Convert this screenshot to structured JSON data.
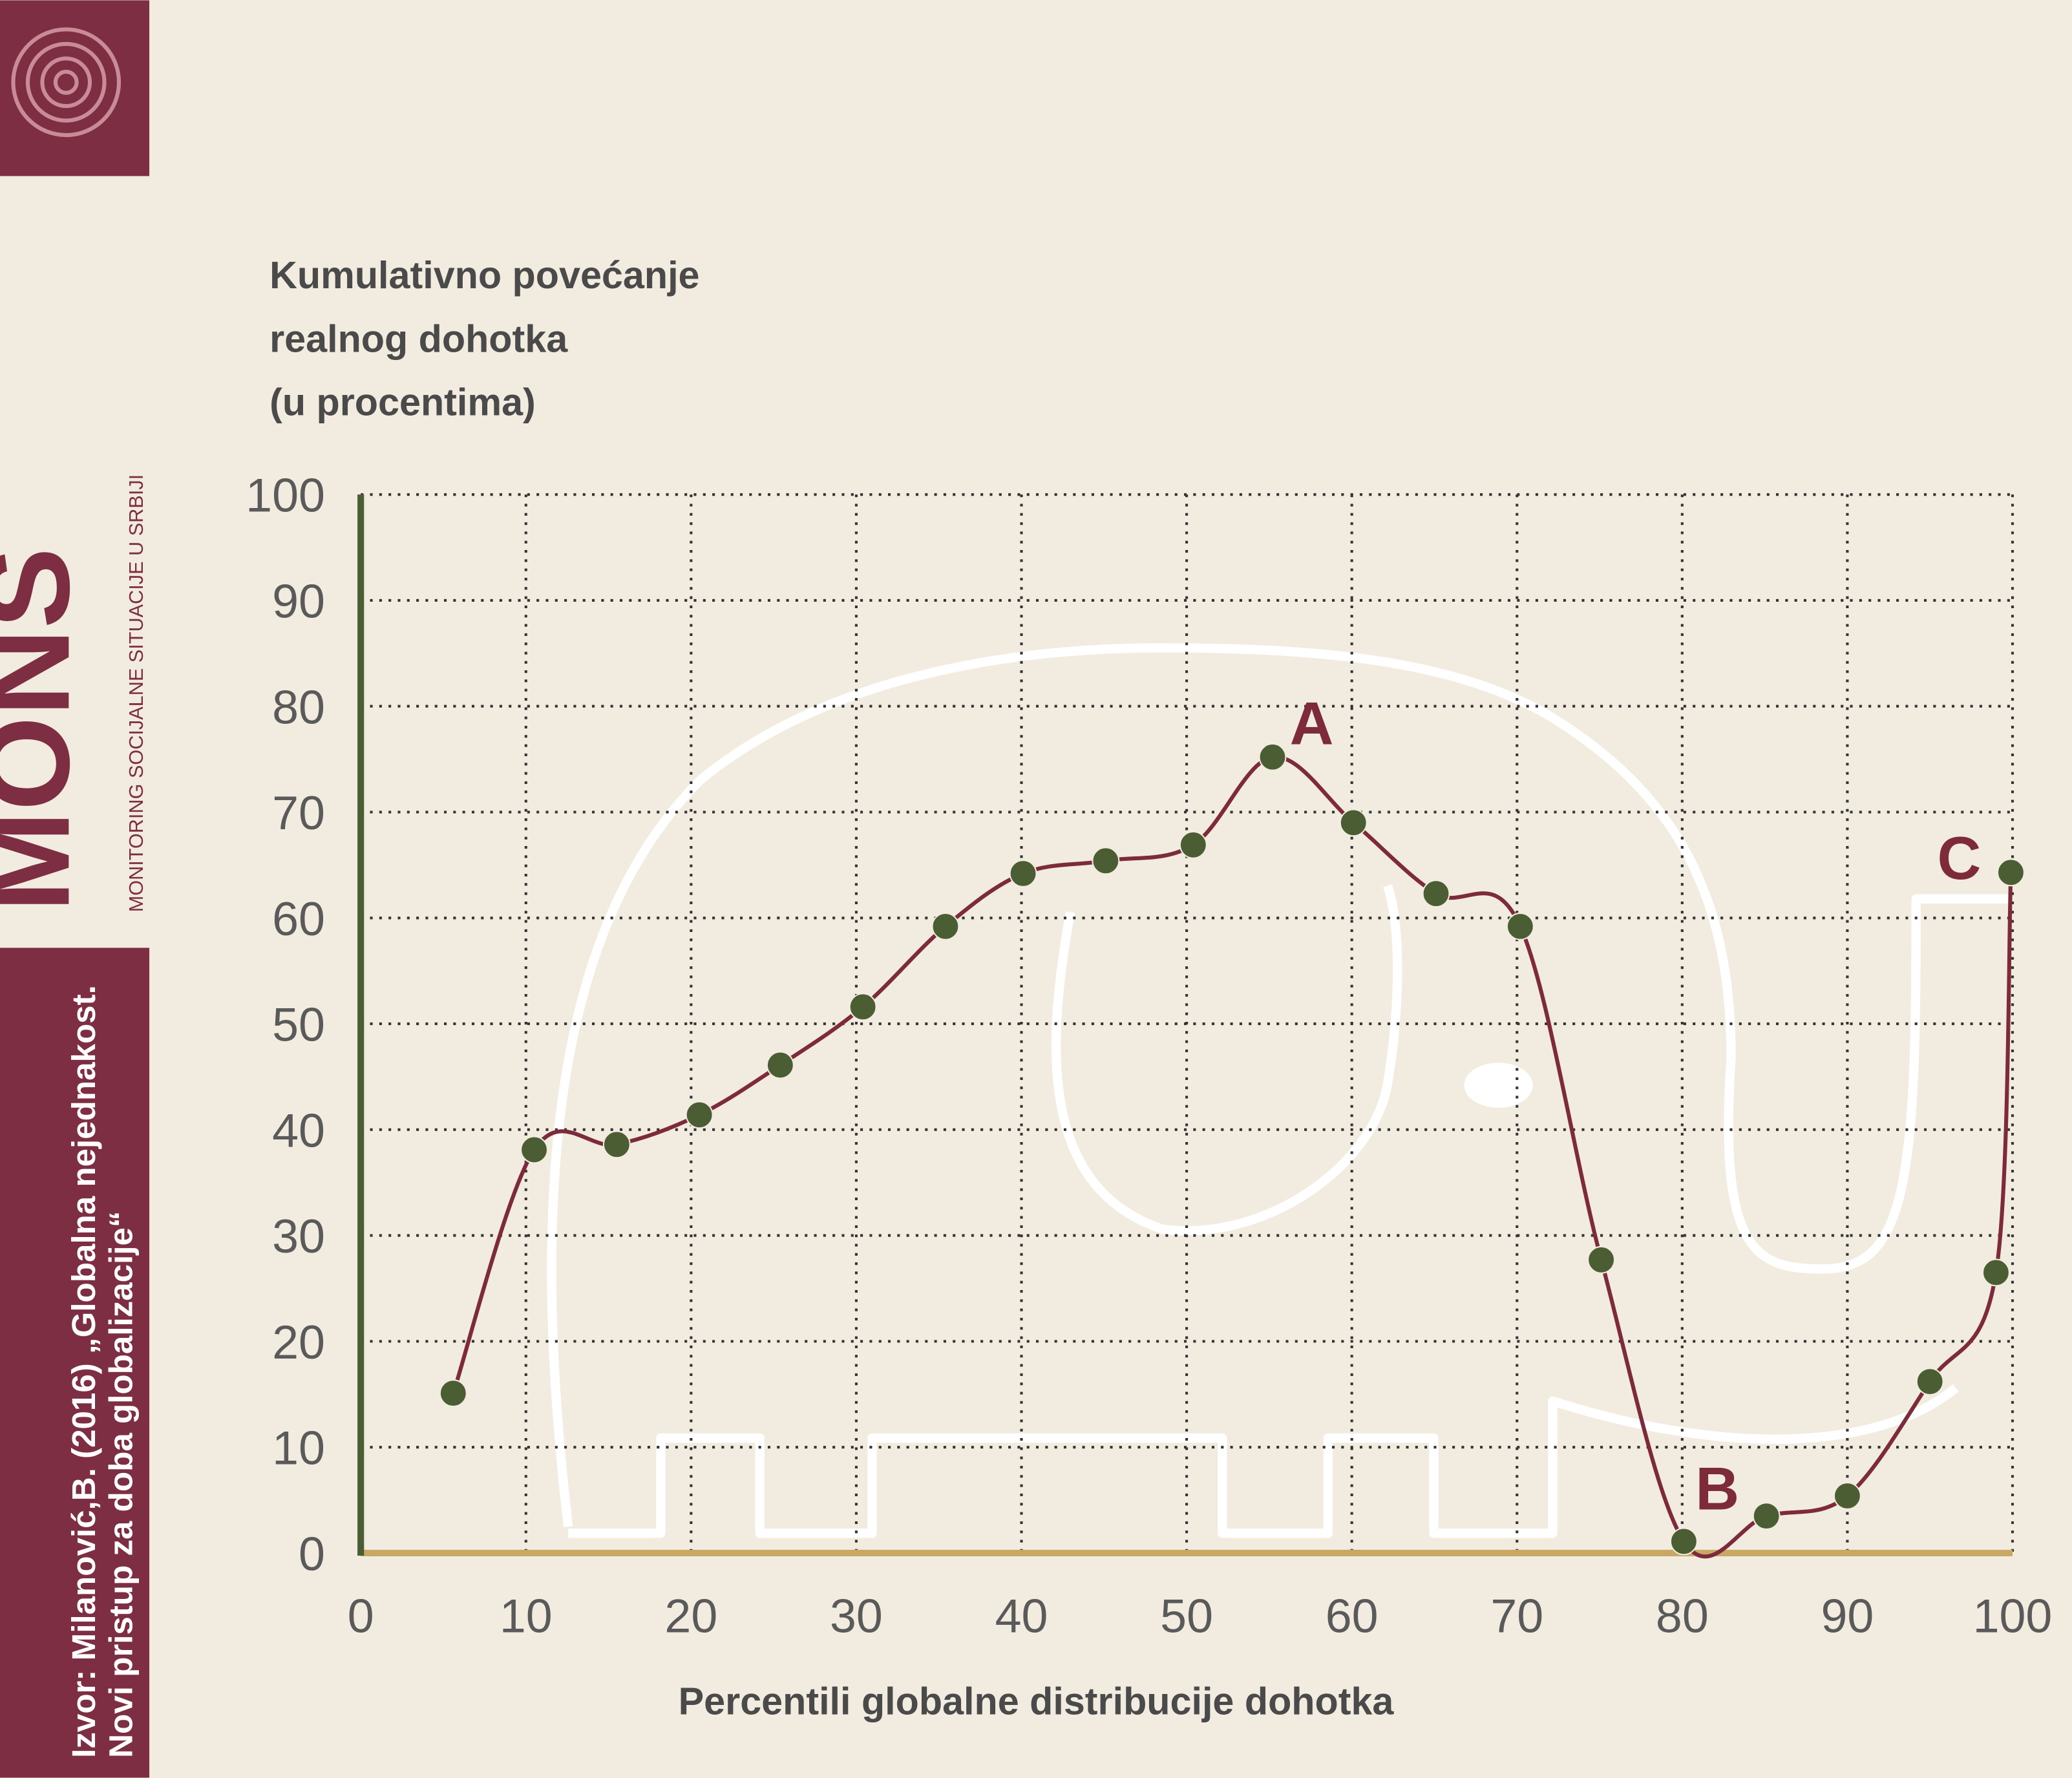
{
  "chart_data": {
    "type": "line",
    "ylabel": [
      "Kumulativno povećanje",
      "realnog dohotka",
      "(u procentima)"
    ],
    "xlabel": "Percentili globalne distribucije dohotka",
    "x": [
      5.6,
      10.5,
      15.5,
      20.5,
      25.4,
      30.4,
      35.4,
      40.1,
      45.1,
      50.4,
      55.2,
      60.1,
      65.1,
      70.2,
      75.1,
      80.1,
      85.1,
      90,
      95,
      99,
      99.9
    ],
    "series": [
      {
        "name": "Kumulativno povećanje realnog dohotka",
        "color": "#7d2b3a",
        "marker_color": "#4b5e33",
        "values": [
          15.1,
          38.1,
          38.6,
          41.4,
          46.1,
          51.6,
          59.2,
          64.2,
          65.4,
          66.9,
          75.2,
          69.0,
          62.3,
          59.2,
          27.7,
          1.1,
          3.5,
          5.4,
          16.2,
          26.5,
          64.3
        ]
      }
    ],
    "annotations": [
      "A",
      "B",
      "C"
    ],
    "xlim": [
      0,
      100
    ],
    "ylim": [
      0,
      100
    ],
    "xticks": [
      0,
      10,
      20,
      30,
      40,
      50,
      60,
      70,
      80,
      90,
      100
    ],
    "yticks": [
      0,
      10,
      20,
      30,
      40,
      50,
      60,
      70,
      80,
      90,
      100
    ],
    "grid": true
  },
  "logo": {
    "name": "MONS",
    "tagline": "MONITORING SOCIJALNE SITUACIJE U SRBIJI"
  },
  "source": [
    "Izvor: Milanović,B. (2016) „Globalna nejednakost.",
    "Novi pristup za doba globalizacije“"
  ]
}
